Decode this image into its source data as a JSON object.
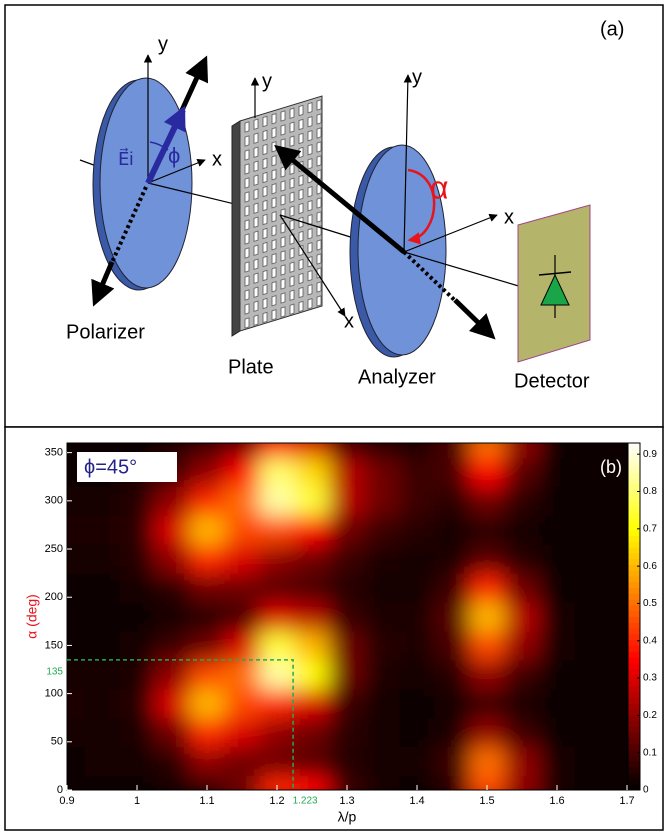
{
  "diagram": {
    "panel_label": "(a)",
    "labels": {
      "polarizer": "Polarizer",
      "plate": "Plate",
      "analyzer": "Analyzer",
      "detector": "Detector",
      "y_polarizer": "y",
      "x_polarizer": "x",
      "y_plate": "y",
      "x_plate": "x",
      "y_analyzer": "y",
      "x_analyzer": "x",
      "field": "E⃗i",
      "phi": "ϕ",
      "alpha": "α"
    }
  },
  "chart_data": {
    "type": "heatmap",
    "panel_label": "(b)",
    "annotation": "ϕ=45°",
    "xlabel": "λ/p",
    "ylabel": "α (deg)",
    "ylabel_color": "#e8141b",
    "colormap": "hot",
    "xlim": [
      0.9,
      1.7
    ],
    "ylim": [
      0,
      360
    ],
    "xticks": [
      0.9,
      1,
      1.1,
      1.2,
      1.3,
      1.4,
      1.5,
      1.6,
      1.7
    ],
    "yticks": [
      0,
      50,
      100,
      150,
      200,
      250,
      300,
      350
    ],
    "zlim": [
      0,
      0.93
    ],
    "zticks": [
      0,
      0.1,
      0.2,
      0.3,
      0.4,
      0.5,
      0.6,
      0.7,
      0.8,
      0.9
    ],
    "guide": {
      "x": 1.223,
      "y": 135,
      "color": "#22aa55"
    },
    "x": [
      0.9,
      0.95,
      1.0,
      1.05,
      1.1,
      1.15,
      1.2,
      1.25,
      1.3,
      1.35,
      1.4,
      1.45,
      1.5,
      1.55,
      1.6,
      1.65,
      1.7
    ],
    "y": [
      0,
      30,
      60,
      90,
      120,
      150,
      180,
      210,
      240,
      270,
      300,
      330,
      360
    ],
    "z": [
      [
        0.02,
        0.02,
        0.02,
        0.03,
        0.05,
        0.15,
        0.4,
        0.35,
        0.08,
        0.03,
        0.02,
        0.05,
        0.45,
        0.2,
        0.03,
        0.02,
        0.02
      ],
      [
        0.02,
        0.03,
        0.03,
        0.06,
        0.2,
        0.15,
        0.15,
        0.12,
        0.05,
        0.03,
        0.03,
        0.08,
        0.5,
        0.2,
        0.03,
        0.02,
        0.02
      ],
      [
        0.03,
        0.03,
        0.04,
        0.15,
        0.4,
        0.3,
        0.2,
        0.15,
        0.06,
        0.03,
        0.02,
        0.04,
        0.2,
        0.08,
        0.02,
        0.02,
        0.02
      ],
      [
        0.04,
        0.03,
        0.05,
        0.3,
        0.6,
        0.45,
        0.4,
        0.3,
        0.08,
        0.03,
        0.02,
        0.03,
        0.08,
        0.04,
        0.02,
        0.02,
        0.02
      ],
      [
        0.03,
        0.03,
        0.04,
        0.2,
        0.45,
        0.5,
        0.85,
        0.7,
        0.15,
        0.04,
        0.03,
        0.05,
        0.2,
        0.08,
        0.02,
        0.02,
        0.02
      ],
      [
        0.02,
        0.02,
        0.03,
        0.08,
        0.15,
        0.3,
        0.75,
        0.6,
        0.15,
        0.05,
        0.04,
        0.1,
        0.45,
        0.2,
        0.03,
        0.02,
        0.02
      ],
      [
        0.02,
        0.02,
        0.02,
        0.03,
        0.05,
        0.1,
        0.3,
        0.25,
        0.08,
        0.04,
        0.04,
        0.12,
        0.6,
        0.25,
        0.03,
        0.02,
        0.02
      ],
      [
        0.02,
        0.02,
        0.03,
        0.06,
        0.15,
        0.15,
        0.12,
        0.1,
        0.05,
        0.03,
        0.03,
        0.08,
        0.4,
        0.15,
        0.02,
        0.02,
        0.02
      ],
      [
        0.03,
        0.03,
        0.05,
        0.2,
        0.4,
        0.3,
        0.2,
        0.15,
        0.08,
        0.04,
        0.03,
        0.04,
        0.12,
        0.05,
        0.02,
        0.02,
        0.02
      ],
      [
        0.04,
        0.04,
        0.06,
        0.3,
        0.6,
        0.45,
        0.45,
        0.35,
        0.15,
        0.08,
        0.05,
        0.03,
        0.05,
        0.03,
        0.02,
        0.02,
        0.02
      ],
      [
        0.03,
        0.03,
        0.05,
        0.2,
        0.4,
        0.5,
        0.85,
        0.75,
        0.25,
        0.15,
        0.08,
        0.06,
        0.15,
        0.06,
        0.02,
        0.02,
        0.02
      ],
      [
        0.02,
        0.02,
        0.03,
        0.08,
        0.2,
        0.35,
        0.8,
        0.65,
        0.25,
        0.15,
        0.08,
        0.1,
        0.35,
        0.12,
        0.02,
        0.02,
        0.02
      ],
      [
        0.02,
        0.02,
        0.02,
        0.04,
        0.08,
        0.15,
        0.35,
        0.3,
        0.1,
        0.05,
        0.04,
        0.1,
        0.5,
        0.2,
        0.02,
        0.02,
        0.02
      ]
    ]
  }
}
